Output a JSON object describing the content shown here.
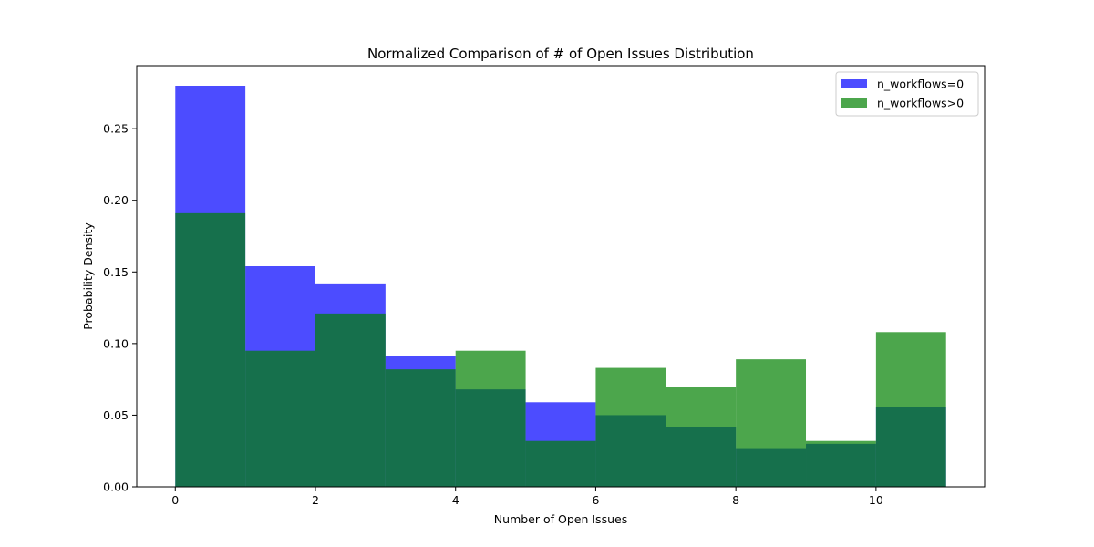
{
  "chart_data": {
    "type": "bar",
    "title": "Normalized Comparison of # of Open Issues Distribution",
    "xlabel": "Number of Open Issues",
    "ylabel": "Probability Density",
    "xlim": [
      -0.55,
      11.55
    ],
    "ylim": [
      0,
      0.294
    ],
    "xticks": [
      0,
      2,
      4,
      6,
      8,
      10
    ],
    "yticks": [
      0.0,
      0.05,
      0.1,
      0.15,
      0.2,
      0.25
    ],
    "grid": false,
    "legend_position": "top-right",
    "bin_edges": [
      0,
      1,
      2,
      3,
      4,
      5,
      6,
      7,
      8,
      9,
      10,
      11
    ],
    "series": [
      {
        "name": "n_workflows=0",
        "color": "#0000ff",
        "alpha": 0.7,
        "values": [
          0.28,
          0.154,
          0.142,
          0.091,
          0.068,
          0.059,
          0.05,
          0.042,
          0.027,
          0.03,
          0.056
        ]
      },
      {
        "name": "n_workflows>0",
        "color": "#008000",
        "alpha": 0.7,
        "values": [
          0.191,
          0.095,
          0.121,
          0.082,
          0.095,
          0.032,
          0.083,
          0.07,
          0.089,
          0.032,
          0.108
        ]
      }
    ]
  }
}
